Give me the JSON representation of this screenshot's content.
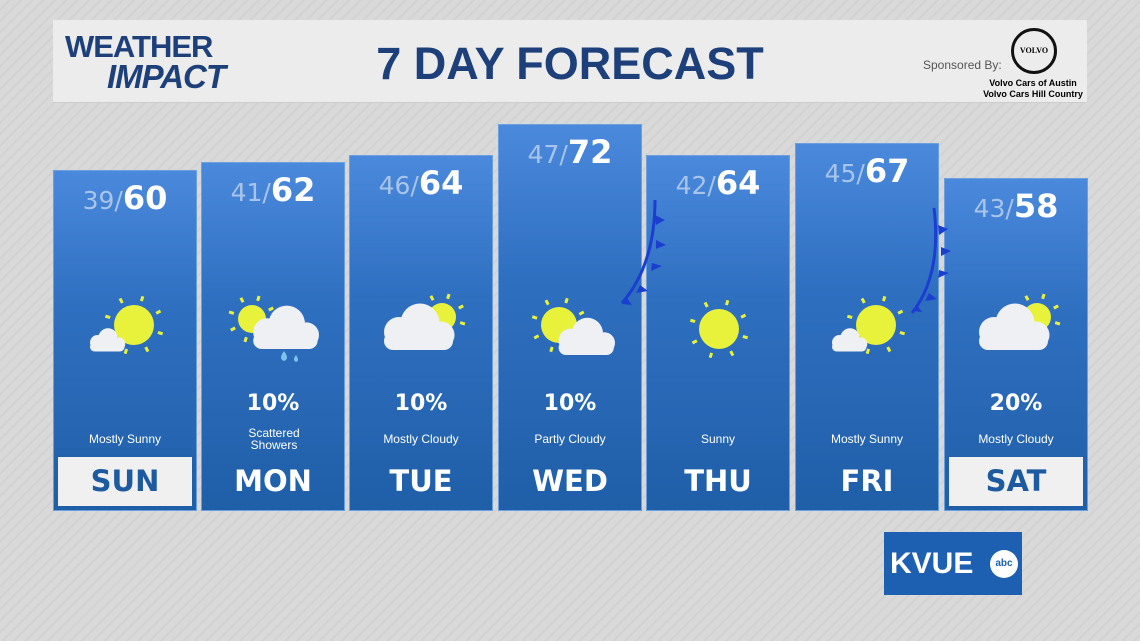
{
  "header": {
    "logo_line1": "WEATHER",
    "logo_line2": "IMPACT",
    "title": "7 DAY FORECAST",
    "sponsor_label": "Sponsored By:",
    "sponsor_logo": "VOLVO",
    "dealer1": "Volvo Cars of Austin",
    "dealer2": "Volvo Cars Hill Country"
  },
  "days": [
    {
      "day": "SUN",
      "low": "39",
      "high": "60",
      "pop": "",
      "condition": "Mostly Sunny",
      "icon": "mostly-sunny",
      "highlight": true
    },
    {
      "day": "MON",
      "low": "41",
      "high": "62",
      "pop": "10%",
      "condition": "Scattered Showers",
      "icon": "scattered-showers",
      "highlight": false
    },
    {
      "day": "TUE",
      "low": "46",
      "high": "64",
      "pop": "10%",
      "condition": "Mostly Cloudy",
      "icon": "mostly-cloudy",
      "highlight": false
    },
    {
      "day": "WED",
      "low": "47",
      "high": "72",
      "pop": "10%",
      "condition": "Partly Cloudy",
      "icon": "partly-cloudy",
      "highlight": false
    },
    {
      "day": "THU",
      "low": "42",
      "high": "64",
      "pop": "",
      "condition": "Sunny",
      "icon": "sunny",
      "highlight": false
    },
    {
      "day": "FRI",
      "low": "45",
      "high": "67",
      "pop": "",
      "condition": "Mostly Sunny",
      "icon": "mostly-sunny",
      "highlight": false
    },
    {
      "day": "SAT",
      "low": "43",
      "high": "58",
      "pop": "20%",
      "condition": "Mostly Cloudy",
      "icon": "mostly-cloudy",
      "highlight": true
    }
  ],
  "station": {
    "name": "KVUE",
    "network": "abc"
  },
  "colors": {
    "brand": "#1d3f7a",
    "panel": "#2f6fc0",
    "sun": "#e8f23a",
    "front": "#1a3fd0"
  }
}
